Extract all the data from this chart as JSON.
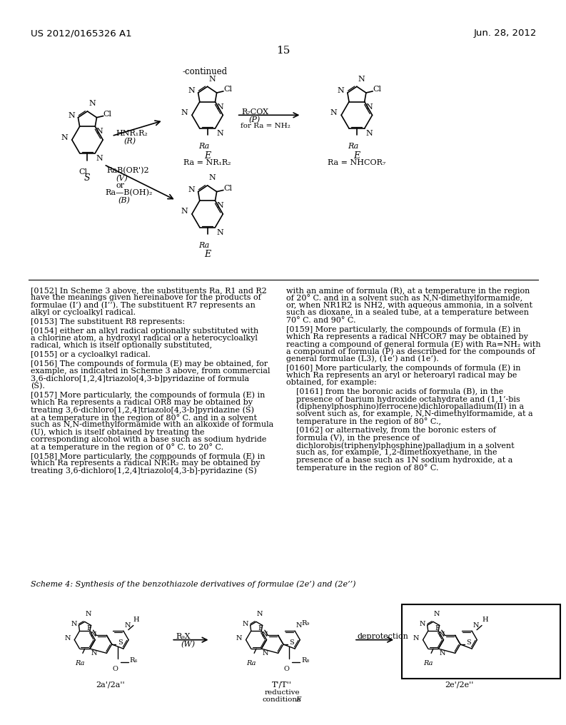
{
  "page_number": "15",
  "header_left": "US 2012/0165326 A1",
  "header_right": "Jun. 28, 2012",
  "background_color": "#ffffff",
  "scheme4_label": "Scheme 4: Synthesis of the benzothiazole derivatives of formulae (2e’) and (2e’’)"
}
